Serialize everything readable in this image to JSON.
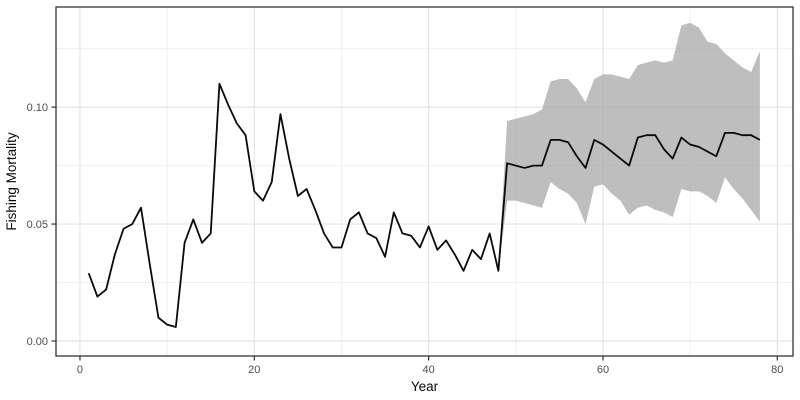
{
  "colors": {
    "background": "#ffffff",
    "panel_background": "#ffffff",
    "panel_border": "#333333",
    "grid_major": "#e4e4e4",
    "grid_minor": "#f0f0f0",
    "tick_mark": "#333333",
    "tick_label": "#4d4d4d",
    "axis_title": "#0a0a0a",
    "line": "#0a0a0a",
    "ribbon": "#a8a8a8"
  },
  "chart_data": {
    "type": "line",
    "title": "",
    "xlabel": "Year",
    "ylabel": "Fishing Mortality",
    "xlim": [
      -2.75,
      81.8
    ],
    "ylim": [
      -0.0064,
      0.1428
    ],
    "grid": true,
    "legend": "none",
    "x_major_ticks": [
      0,
      20,
      40,
      60,
      80
    ],
    "x_tick_labels": [
      "0",
      "20",
      "40",
      "60",
      "80"
    ],
    "x_minor_gridlines": [
      10,
      30,
      50,
      70
    ],
    "y_major_ticks": [
      0.0,
      0.05,
      0.1
    ],
    "y_tick_labels": [
      "0.00",
      "0.05",
      "0.10"
    ],
    "y_minor_gridlines": [
      0.025,
      0.075,
      0.125
    ],
    "series": [
      {
        "name": "confidence_ribbon",
        "type": "ribbon",
        "x": [
          48,
          49,
          50,
          51,
          52,
          53,
          54,
          55,
          56,
          57,
          58,
          59,
          60,
          61,
          62,
          63,
          64,
          65,
          66,
          67,
          68,
          69,
          70,
          71,
          72,
          73,
          74,
          75,
          76,
          77,
          78
        ],
        "lower": [
          0.03,
          0.06,
          0.06,
          0.059,
          0.058,
          0.057,
          0.068,
          0.065,
          0.063,
          0.059,
          0.05,
          0.066,
          0.067,
          0.063,
          0.06,
          0.054,
          0.057,
          0.058,
          0.056,
          0.055,
          0.053,
          0.065,
          0.064,
          0.064,
          0.062,
          0.059,
          0.07,
          0.065,
          0.061,
          0.056,
          0.051
        ],
        "upper": [
          0.03,
          0.094,
          0.095,
          0.096,
          0.097,
          0.099,
          0.111,
          0.112,
          0.112,
          0.108,
          0.102,
          0.112,
          0.114,
          0.114,
          0.113,
          0.112,
          0.118,
          0.119,
          0.12,
          0.119,
          0.12,
          0.135,
          0.136,
          0.134,
          0.128,
          0.127,
          0.123,
          0.12,
          0.117,
          0.115,
          0.124
        ]
      },
      {
        "name": "fishing_mortality",
        "type": "line",
        "x": [
          1,
          2,
          3,
          4,
          5,
          6,
          7,
          8,
          9,
          10,
          11,
          12,
          13,
          14,
          15,
          16,
          17,
          18,
          19,
          20,
          21,
          22,
          23,
          24,
          25,
          26,
          27,
          28,
          29,
          30,
          31,
          32,
          33,
          34,
          35,
          36,
          37,
          38,
          39,
          40,
          41,
          42,
          43,
          44,
          45,
          46,
          47,
          48,
          49,
          50,
          51,
          52,
          53,
          54,
          55,
          56,
          57,
          58,
          59,
          60,
          61,
          62,
          63,
          64,
          65,
          66,
          67,
          68,
          69,
          70,
          71,
          72,
          73,
          74,
          75,
          76,
          77,
          78
        ],
        "y": [
          0.029,
          0.019,
          0.022,
          0.037,
          0.048,
          0.05,
          0.057,
          0.033,
          0.01,
          0.007,
          0.006,
          0.042,
          0.052,
          0.042,
          0.046,
          0.11,
          0.101,
          0.093,
          0.088,
          0.064,
          0.06,
          0.068,
          0.097,
          0.078,
          0.062,
          0.065,
          0.056,
          0.046,
          0.04,
          0.04,
          0.052,
          0.055,
          0.046,
          0.044,
          0.036,
          0.055,
          0.046,
          0.045,
          0.04,
          0.049,
          0.039,
          0.043,
          0.037,
          0.03,
          0.039,
          0.035,
          0.046,
          0.03,
          0.076,
          0.075,
          0.074,
          0.075,
          0.075,
          0.086,
          0.086,
          0.085,
          0.079,
          0.074,
          0.086,
          0.084,
          0.081,
          0.078,
          0.075,
          0.087,
          0.088,
          0.088,
          0.082,
          0.078,
          0.087,
          0.084,
          0.083,
          0.081,
          0.079,
          0.089,
          0.089,
          0.088,
          0.088,
          0.086
        ]
      }
    ]
  }
}
